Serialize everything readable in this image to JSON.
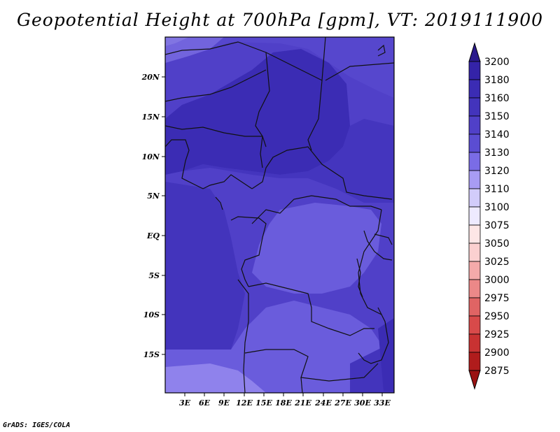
{
  "title": "Geopotential Height at 700hPa [gpm], VT: 2019111900",
  "credit": "GrADS: IGES/COLA",
  "map": {
    "lon_labels": [
      "3E",
      "6E",
      "9E",
      "12E",
      "15E",
      "18E",
      "21E",
      "24E",
      "27E",
      "30E",
      "33E"
    ],
    "lat_labels": [
      "20N",
      "15N",
      "10N",
      "5N",
      "EQ",
      "5S",
      "10S",
      "15S"
    ]
  },
  "colorbar": {
    "levels": [
      "3200",
      "3180",
      "3160",
      "3150",
      "3140",
      "3130",
      "3120",
      "3110",
      "3100",
      "3075",
      "3050",
      "3025",
      "3000",
      "2975",
      "2950",
      "2925",
      "2900",
      "2875"
    ],
    "colors": [
      "#2a1a8c",
      "#3423a8",
      "#3b2cb4",
      "#4334bc",
      "#5040c8",
      "#5b4dd2",
      "#7a6ce6",
      "#a89cf4",
      "#d2ccfa",
      "#eeeaff",
      "#fde6e6",
      "#fbd0d0",
      "#f4aaaa",
      "#ec8888",
      "#e06464",
      "#d84a4a",
      "#c83232",
      "#b01c1c",
      "#9a1212"
    ]
  }
}
